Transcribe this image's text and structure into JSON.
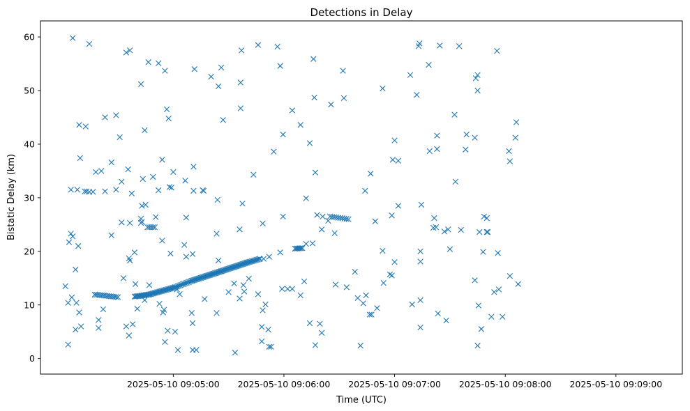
{
  "chart_data": {
    "type": "scatter",
    "title": "Detections in Delay",
    "xlabel": "Time (UTC)",
    "ylabel": "Bistatic Delay (km)",
    "x_start": "2025-05-10 09:04:00",
    "xlim": [
      "2025-05-10 09:03:48",
      "2025-05-10 09:09:36"
    ],
    "ylim": [
      -2.9,
      63
    ],
    "xticks": [
      "2025-05-10 09:05:00",
      "2025-05-10 09:06:00",
      "2025-05-10 09:07:00",
      "2025-05-10 09:08:00",
      "2025-05-10 09:09:00"
    ],
    "yticks": [
      0,
      10,
      20,
      30,
      40,
      50,
      60
    ],
    "grid": false,
    "marker": "x",
    "color": "#1f77b4",
    "points": [
      [
        0.15,
        13.5
      ],
      [
        0.3,
        2.6
      ],
      [
        0.3,
        10.4
      ],
      [
        0.35,
        21.7
      ],
      [
        0.45,
        31.5
      ],
      [
        0.45,
        23.3
      ],
      [
        0.5,
        11.4
      ],
      [
        0.55,
        22.8
      ],
      [
        0.55,
        59.8
      ],
      [
        0.7,
        16.6
      ],
      [
        0.7,
        5.4
      ],
      [
        0.75,
        10.4
      ],
      [
        0.8,
        31.5
      ],
      [
        0.85,
        21.0
      ],
      [
        0.9,
        8.6
      ],
      [
        0.9,
        43.6
      ],
      [
        0.95,
        37.4
      ],
      [
        1.0,
        6.0
      ],
      [
        1.2,
        31.2
      ],
      [
        1.25,
        43.3
      ],
      [
        1.3,
        31.2
      ],
      [
        1.45,
        58.7
      ],
      [
        1.45,
        31.1
      ],
      [
        1.65,
        31.1
      ],
      [
        1.75,
        11.9
      ],
      [
        1.8,
        34.8
      ],
      [
        1.95,
        7.2
      ],
      [
        1.95,
        5.7
      ],
      [
        2.1,
        35.0
      ],
      [
        2.2,
        9.2
      ],
      [
        2.3,
        45.0
      ],
      [
        2.3,
        31.2
      ],
      [
        2.65,
        36.6
      ],
      [
        2.65,
        23.0
      ],
      [
        2.9,
        31.5
      ],
      [
        2.9,
        45.4
      ],
      [
        3.1,
        41.3
      ],
      [
        3.2,
        33.0
      ],
      [
        3.2,
        25.4
      ],
      [
        3.3,
        15.0
      ],
      [
        3.45,
        6.0
      ],
      [
        3.45,
        57.1
      ],
      [
        3.55,
        35.3
      ],
      [
        3.6,
        4.3
      ],
      [
        3.6,
        18.7
      ],
      [
        3.65,
        18.3
      ],
      [
        3.65,
        25.3
      ],
      [
        3.65,
        57.5
      ],
      [
        3.75,
        30.8
      ],
      [
        3.8,
        6.4
      ],
      [
        3.9,
        19.8
      ],
      [
        3.95,
        13.9
      ],
      [
        4.05,
        9.3
      ],
      [
        4.25,
        51.2
      ],
      [
        4.25,
        26.1
      ],
      [
        4.25,
        25.3
      ],
      [
        4.3,
        28.5
      ],
      [
        4.3,
        25.5
      ],
      [
        4.35,
        33.5
      ],
      [
        4.45,
        42.6
      ],
      [
        4.45,
        10.9
      ],
      [
        4.5,
        28.7
      ],
      [
        4.65,
        55.3
      ],
      [
        4.7,
        13.7
      ],
      [
        4.9,
        33.9
      ],
      [
        5.05,
        26.4
      ],
      [
        5.2,
        31.4
      ],
      [
        5.2,
        55.1
      ],
      [
        5.25,
        10.2
      ],
      [
        5.4,
        22.0
      ],
      [
        5.4,
        37.1
      ],
      [
        5.45,
        8.6
      ],
      [
        5.5,
        9.1
      ],
      [
        5.55,
        53.7
      ],
      [
        5.55,
        3.1
      ],
      [
        5.65,
        46.5
      ],
      [
        5.7,
        5.2
      ],
      [
        5.75,
        44.8
      ],
      [
        5.8,
        32.0
      ],
      [
        5.85,
        19.6
      ],
      [
        5.9,
        31.9
      ],
      [
        6.0,
        34.8
      ],
      [
        6.1,
        5.0
      ],
      [
        6.2,
        12.9
      ],
      [
        6.25,
        1.6
      ],
      [
        6.35,
        12.0
      ],
      [
        6.6,
        21.2
      ],
      [
        6.65,
        33.2
      ],
      [
        6.7,
        26.3
      ],
      [
        6.7,
        19.0
      ],
      [
        7.0,
        8.5
      ],
      [
        7.05,
        19.5
      ],
      [
        7.05,
        6.6
      ],
      [
        7.05,
        1.6
      ],
      [
        7.1,
        31.3
      ],
      [
        7.1,
        35.8
      ],
      [
        7.15,
        54.0
      ],
      [
        7.25,
        1.6
      ],
      [
        7.6,
        31.4
      ],
      [
        7.65,
        31.3
      ],
      [
        7.7,
        11.1
      ],
      [
        8.05,
        52.6
      ],
      [
        8.35,
        8.5
      ],
      [
        8.35,
        23.3
      ],
      [
        8.4,
        29.6
      ],
      [
        8.45,
        18.3
      ],
      [
        8.45,
        50.8
      ],
      [
        8.6,
        54.3
      ],
      [
        8.7,
        44.5
      ],
      [
        9.0,
        12.4
      ],
      [
        9.3,
        14.0
      ],
      [
        9.35,
        1.1
      ],
      [
        9.6,
        11.2
      ],
      [
        9.6,
        24.1
      ],
      [
        9.65,
        46.7
      ],
      [
        9.65,
        51.5
      ],
      [
        9.7,
        57.5
      ],
      [
        9.75,
        28.9
      ],
      [
        9.8,
        13.7
      ],
      [
        9.85,
        12.5
      ],
      [
        10.1,
        14.9
      ],
      [
        10.35,
        34.3
      ],
      [
        10.6,
        58.5
      ],
      [
        10.6,
        12.0
      ],
      [
        10.8,
        3.2
      ],
      [
        10.8,
        5.9
      ],
      [
        10.85,
        9.0
      ],
      [
        10.85,
        25.2
      ],
      [
        10.9,
        18.6
      ],
      [
        11.0,
        10.1
      ],
      [
        11.15,
        5.4
      ],
      [
        11.2,
        19.0
      ],
      [
        11.2,
        2.2
      ],
      [
        11.3,
        2.2
      ],
      [
        11.45,
        38.6
      ],
      [
        11.65,
        58.2
      ],
      [
        11.8,
        54.6
      ],
      [
        11.8,
        19.8
      ],
      [
        11.9,
        13.0
      ],
      [
        11.95,
        26.5
      ],
      [
        11.95,
        41.8
      ],
      [
        12.2,
        13.0
      ],
      [
        12.45,
        46.3
      ],
      [
        12.45,
        13.0
      ],
      [
        12.9,
        43.6
      ],
      [
        12.9,
        11.8
      ],
      [
        13.1,
        14.4
      ],
      [
        13.2,
        29.9
      ],
      [
        13.2,
        21.4
      ],
      [
        13.4,
        40.2
      ],
      [
        13.4,
        6.6
      ],
      [
        13.55,
        21.5
      ],
      [
        13.6,
        55.9
      ],
      [
        13.65,
        48.7
      ],
      [
        13.7,
        34.7
      ],
      [
        13.7,
        2.5
      ],
      [
        13.8,
        26.8
      ],
      [
        13.95,
        6.5
      ],
      [
        14.05,
        4.8
      ],
      [
        14.05,
        24.1
      ],
      [
        14.1,
        26.5
      ],
      [
        14.4,
        25.7
      ],
      [
        14.55,
        47.4
      ],
      [
        14.75,
        23.4
      ],
      [
        14.8,
        13.8
      ],
      [
        15.2,
        53.7
      ],
      [
        15.25,
        48.6
      ],
      [
        15.4,
        13.3
      ],
      [
        15.85,
        16.2
      ],
      [
        16.0,
        11.3
      ],
      [
        16.15,
        2.4
      ],
      [
        16.3,
        10.3
      ],
      [
        16.4,
        31.3
      ],
      [
        16.45,
        11.8
      ],
      [
        16.65,
        8.2
      ],
      [
        16.75,
        8.2
      ],
      [
        16.7,
        34.5
      ],
      [
        16.95,
        25.6
      ],
      [
        17.05,
        9.4
      ],
      [
        17.35,
        50.4
      ],
      [
        17.35,
        20.1
      ],
      [
        17.4,
        14.1
      ],
      [
        17.75,
        15.7
      ],
      [
        17.85,
        15.5
      ],
      [
        17.85,
        26.7
      ],
      [
        17.9,
        37.1
      ],
      [
        18.0,
        40.7
      ],
      [
        18.0,
        18.0
      ],
      [
        18.2,
        28.5
      ],
      [
        18.2,
        36.9
      ],
      [
        18.85,
        52.9
      ],
      [
        18.95,
        10.1
      ],
      [
        19.2,
        49.2
      ],
      [
        19.3,
        58.3
      ],
      [
        19.35,
        58.8
      ],
      [
        19.4,
        5.8
      ],
      [
        19.4,
        18.1
      ],
      [
        19.4,
        10.9
      ],
      [
        19.4,
        20.0
      ],
      [
        19.45,
        28.7
      ],
      [
        19.85,
        54.8
      ],
      [
        19.9,
        38.7
      ],
      [
        20.1,
        24.4
      ],
      [
        20.15,
        26.2
      ],
      [
        20.25,
        24.5
      ],
      [
        20.3,
        39.1
      ],
      [
        20.3,
        41.6
      ],
      [
        20.35,
        8.4
      ],
      [
        20.45,
        58.4
      ],
      [
        20.7,
        23.7
      ],
      [
        20.8,
        7.1
      ],
      [
        20.9,
        24.1
      ],
      [
        21.0,
        20.4
      ],
      [
        21.25,
        45.5
      ],
      [
        21.3,
        33.0
      ],
      [
        21.5,
        58.3
      ],
      [
        21.6,
        24.0
      ],
      [
        21.85,
        39.0
      ],
      [
        21.9,
        41.8
      ],
      [
        22.35,
        14.6
      ],
      [
        22.35,
        41.2
      ],
      [
        22.4,
        52.3
      ],
      [
        22.5,
        52.9
      ],
      [
        22.5,
        50.0
      ],
      [
        22.5,
        2.4
      ],
      [
        22.55,
        9.9
      ],
      [
        22.6,
        23.6
      ],
      [
        22.7,
        5.5
      ],
      [
        22.8,
        19.9
      ],
      [
        22.85,
        26.5
      ],
      [
        23.0,
        26.2
      ],
      [
        23.0,
        23.6
      ],
      [
        23.05,
        23.6
      ],
      [
        23.25,
        7.8
      ],
      [
        23.4,
        12.4
      ],
      [
        23.55,
        57.4
      ],
      [
        23.6,
        19.7
      ],
      [
        23.65,
        12.9
      ],
      [
        23.85,
        7.8
      ],
      [
        24.2,
        38.7
      ],
      [
        24.25,
        15.4
      ],
      [
        24.25,
        36.8
      ],
      [
        24.55,
        41.2
      ],
      [
        24.6,
        44.1
      ],
      [
        24.7,
        13.9
      ]
    ],
    "trail_segments": [
      {
        "x": [
          1.75,
          3.0
        ],
        "y": [
          11.95,
          11.45
        ],
        "n": 14
      },
      {
        "x": [
          3.9,
          4.7
        ],
        "y": [
          11.55,
          11.95
        ],
        "n": 14
      },
      {
        "x": [
          4.7,
          6.1
        ],
        "y": [
          11.95,
          13.3
        ],
        "n": 24
      },
      {
        "x": [
          6.1,
          7.0
        ],
        "y": [
          13.3,
          14.5
        ],
        "n": 14
      },
      {
        "x": [
          7.0,
          8.6
        ],
        "y": [
          14.5,
          16.3
        ],
        "n": 30
      },
      {
        "x": [
          8.6,
          10.0
        ],
        "y": [
          16.3,
          17.9
        ],
        "n": 26
      },
      {
        "x": [
          10.0,
          10.7
        ],
        "y": [
          17.9,
          18.6
        ],
        "n": 12
      },
      {
        "x": [
          12.6,
          13.0
        ],
        "y": [
          20.5,
          20.6
        ],
        "n": 7
      },
      {
        "x": [
          14.5,
          15.5
        ],
        "y": [
          26.5,
          26.0
        ],
        "n": 10
      },
      {
        "x": [
          4.6,
          5.0
        ],
        "y": [
          24.5,
          24.5
        ],
        "n": 5
      }
    ]
  }
}
